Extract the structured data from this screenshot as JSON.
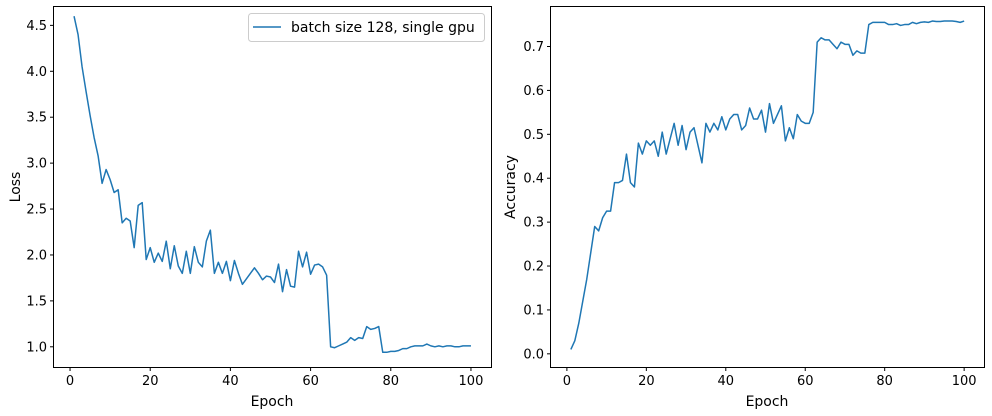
{
  "colors": {
    "series": "#1f77b4"
  },
  "chart_data": [
    {
      "type": "line",
      "xlabel": "Epoch",
      "ylabel": "Loss",
      "xlim": [
        -4,
        105
      ],
      "ylim": [
        0.78,
        4.7
      ],
      "xticks": [
        0,
        20,
        40,
        60,
        80,
        100
      ],
      "yticks": [
        1.0,
        1.5,
        2.0,
        2.5,
        3.0,
        3.5,
        4.0,
        4.5
      ],
      "ytick_labels": [
        "1.0",
        "1.5",
        "2.0",
        "2.5",
        "3.0",
        "3.5",
        "4.0",
        "4.5"
      ],
      "legend": "top-right",
      "series": [
        {
          "name": "batch size 128, single gpu",
          "x": [
            1,
            2,
            3,
            4,
            5,
            6,
            7,
            8,
            9,
            10,
            11,
            12,
            13,
            14,
            15,
            16,
            17,
            18,
            19,
            20,
            21,
            22,
            23,
            24,
            25,
            26,
            27,
            28,
            29,
            30,
            31,
            32,
            33,
            34,
            35,
            36,
            37,
            38,
            39,
            40,
            41,
            42,
            43,
            44,
            45,
            46,
            47,
            48,
            49,
            50,
            51,
            52,
            53,
            54,
            55,
            56,
            57,
            58,
            59,
            60,
            61,
            62,
            63,
            64,
            65,
            66,
            67,
            68,
            69,
            70,
            71,
            72,
            73,
            74,
            75,
            76,
            77,
            78,
            79,
            80,
            81,
            82,
            83,
            84,
            85,
            86,
            87,
            88,
            89,
            90,
            91,
            92,
            93,
            94,
            95,
            96,
            97,
            98,
            99,
            100
          ],
          "values": [
            4.6,
            4.4,
            4.05,
            3.78,
            3.52,
            3.28,
            3.08,
            2.78,
            2.93,
            2.82,
            2.68,
            2.71,
            2.35,
            2.4,
            2.37,
            2.08,
            2.54,
            2.57,
            1.95,
            2.08,
            1.92,
            2.02,
            1.93,
            2.15,
            1.85,
            2.1,
            1.88,
            1.8,
            2.04,
            1.8,
            2.09,
            1.92,
            1.87,
            2.15,
            2.27,
            1.8,
            1.92,
            1.8,
            1.93,
            1.72,
            1.94,
            1.8,
            1.68,
            1.74,
            1.8,
            1.86,
            1.8,
            1.73,
            1.77,
            1.76,
            1.7,
            1.9,
            1.6,
            1.84,
            1.66,
            1.65,
            2.04,
            1.87,
            2.03,
            1.79,
            1.89,
            1.9,
            1.87,
            1.78,
            1.0,
            0.99,
            1.01,
            1.03,
            1.05,
            1.1,
            1.07,
            1.1,
            1.09,
            1.22,
            1.19,
            1.2,
            1.22,
            0.94,
            0.94,
            0.95,
            0.95,
            0.96,
            0.98,
            0.98,
            1.0,
            1.01,
            1.01,
            1.01,
            1.03,
            1.01,
            1.0,
            1.01,
            1.0,
            1.01,
            1.01,
            1.0,
            1.0,
            1.01,
            1.01,
            1.01
          ]
        }
      ]
    },
    {
      "type": "line",
      "xlabel": "Epoch",
      "ylabel": "Accuracy",
      "xlim": [
        -4,
        105
      ],
      "ylim": [
        -0.03,
        0.79
      ],
      "xticks": [
        0,
        20,
        40,
        60,
        80,
        100
      ],
      "yticks": [
        0.0,
        0.1,
        0.2,
        0.3,
        0.4,
        0.5,
        0.6,
        0.7
      ],
      "ytick_labels": [
        "0.0",
        "0.1",
        "0.2",
        "0.3",
        "0.4",
        "0.5",
        "0.6",
        "0.7"
      ],
      "series": [
        {
          "x": [
            1,
            2,
            3,
            4,
            5,
            6,
            7,
            8,
            9,
            10,
            11,
            12,
            13,
            14,
            15,
            16,
            17,
            18,
            19,
            20,
            21,
            22,
            23,
            24,
            25,
            26,
            27,
            28,
            29,
            30,
            31,
            32,
            33,
            34,
            35,
            36,
            37,
            38,
            39,
            40,
            41,
            42,
            43,
            44,
            45,
            46,
            47,
            48,
            49,
            50,
            51,
            52,
            53,
            54,
            55,
            56,
            57,
            58,
            59,
            60,
            61,
            62,
            63,
            64,
            65,
            66,
            67,
            68,
            69,
            70,
            71,
            72,
            73,
            74,
            75,
            76,
            77,
            78,
            79,
            80,
            81,
            82,
            83,
            84,
            85,
            86,
            87,
            88,
            89,
            90,
            91,
            92,
            93,
            94,
            95,
            96,
            97,
            98,
            99,
            100
          ],
          "values": [
            0.01,
            0.03,
            0.07,
            0.12,
            0.17,
            0.23,
            0.29,
            0.28,
            0.31,
            0.325,
            0.325,
            0.39,
            0.39,
            0.395,
            0.455,
            0.39,
            0.38,
            0.48,
            0.455,
            0.485,
            0.475,
            0.485,
            0.45,
            0.505,
            0.455,
            0.49,
            0.525,
            0.475,
            0.52,
            0.465,
            0.505,
            0.515,
            0.475,
            0.435,
            0.525,
            0.505,
            0.525,
            0.51,
            0.54,
            0.51,
            0.535,
            0.545,
            0.545,
            0.51,
            0.52,
            0.56,
            0.535,
            0.535,
            0.555,
            0.505,
            0.57,
            0.525,
            0.545,
            0.565,
            0.485,
            0.515,
            0.49,
            0.545,
            0.53,
            0.525,
            0.525,
            0.55,
            0.71,
            0.72,
            0.715,
            0.715,
            0.705,
            0.695,
            0.71,
            0.705,
            0.705,
            0.68,
            0.69,
            0.685,
            0.685,
            0.75,
            0.755,
            0.755,
            0.755,
            0.755,
            0.75,
            0.75,
            0.752,
            0.748,
            0.75,
            0.75,
            0.755,
            0.752,
            0.755,
            0.756,
            0.755,
            0.758,
            0.757,
            0.757,
            0.758,
            0.758,
            0.758,
            0.757,
            0.755,
            0.758
          ]
        }
      ]
    }
  ]
}
